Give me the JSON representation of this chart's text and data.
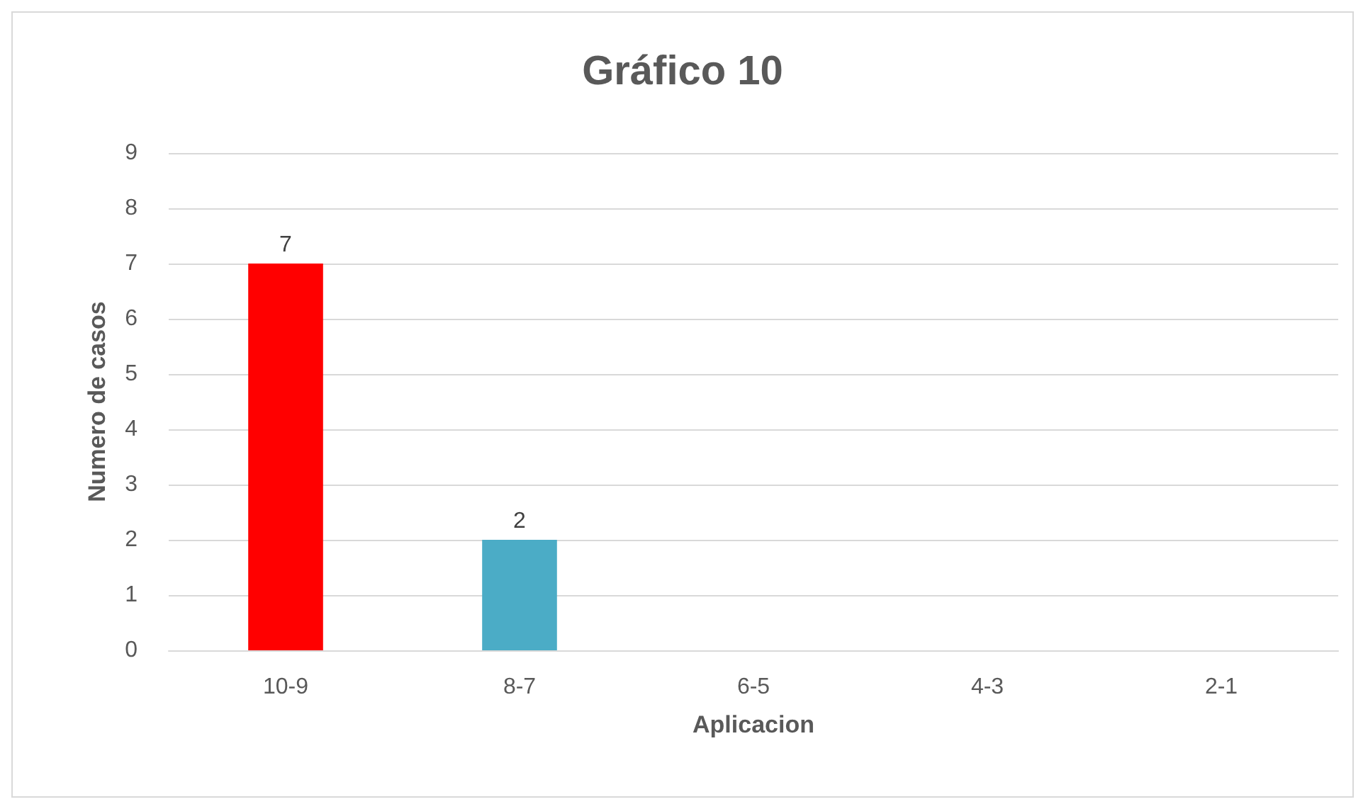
{
  "chart_data": {
    "type": "bar",
    "title": "Gráfico 10",
    "xlabel": "Aplicacion",
    "ylabel": "Numero de casos",
    "categories": [
      "10-9",
      "8-7",
      "6-5",
      "4-3",
      "2-1"
    ],
    "values": [
      7,
      2,
      0,
      0,
      0
    ],
    "colors": [
      "#ff0000",
      "#4bacc6",
      "#4bacc6",
      "#4bacc6",
      "#4bacc6"
    ],
    "value_labels": [
      "7",
      "2",
      null,
      null,
      null
    ],
    "ylim": [
      0,
      9
    ],
    "yticks": [
      0,
      1,
      2,
      3,
      4,
      5,
      6,
      7,
      8,
      9
    ],
    "grid": "y"
  }
}
